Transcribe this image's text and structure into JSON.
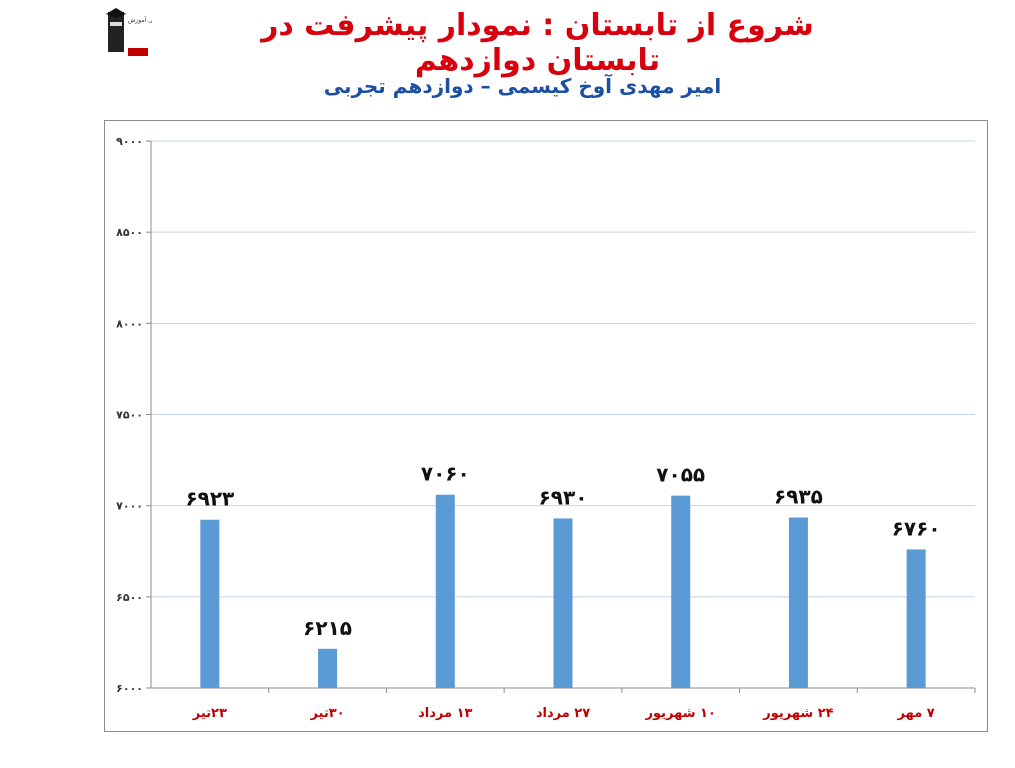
{
  "header": {
    "title": "شروع از تابستان : نمودار پیشرفت در تابستان دوازدهم",
    "subtitle": "امیر مهدی آوخ کیسمی – دوازدهم تجربی",
    "logo_text": "کانون فرهنگی آموزش"
  },
  "colors": {
    "title": "#d8000c",
    "subtitle": "#1a4fa3",
    "bar": "#5b9bd5",
    "category_label": "#c00000",
    "gridline": "#c5d5ea"
  },
  "chart_data": {
    "type": "bar",
    "categories": [
      "۲۳تیر",
      "۳۰تیر",
      "۱۳ مرداد",
      "۲۷ مرداد",
      "۱۰ شهریور",
      "۲۴ شهریور",
      "۷ مهر"
    ],
    "values": [
      6923,
      6215,
      7060,
      6930,
      7055,
      6935,
      6760
    ],
    "value_labels": [
      "۶۹۲۳",
      "۶۲۱۵",
      "۷۰۶۰",
      "۶۹۳۰",
      "۷۰۵۵",
      "۶۹۳۵",
      "۶۷۶۰"
    ],
    "y_ticks": [
      6000,
      6500,
      7000,
      7500,
      8000,
      8500,
      9000
    ],
    "y_tick_labels": [
      "۶۰۰۰",
      "۶۵۰۰",
      "۷۰۰۰",
      "۷۵۰۰",
      "۸۰۰۰",
      "۸۵۰۰",
      "۹۰۰۰"
    ],
    "ylim": [
      6000,
      9000
    ],
    "grid": true,
    "legend": "none"
  }
}
